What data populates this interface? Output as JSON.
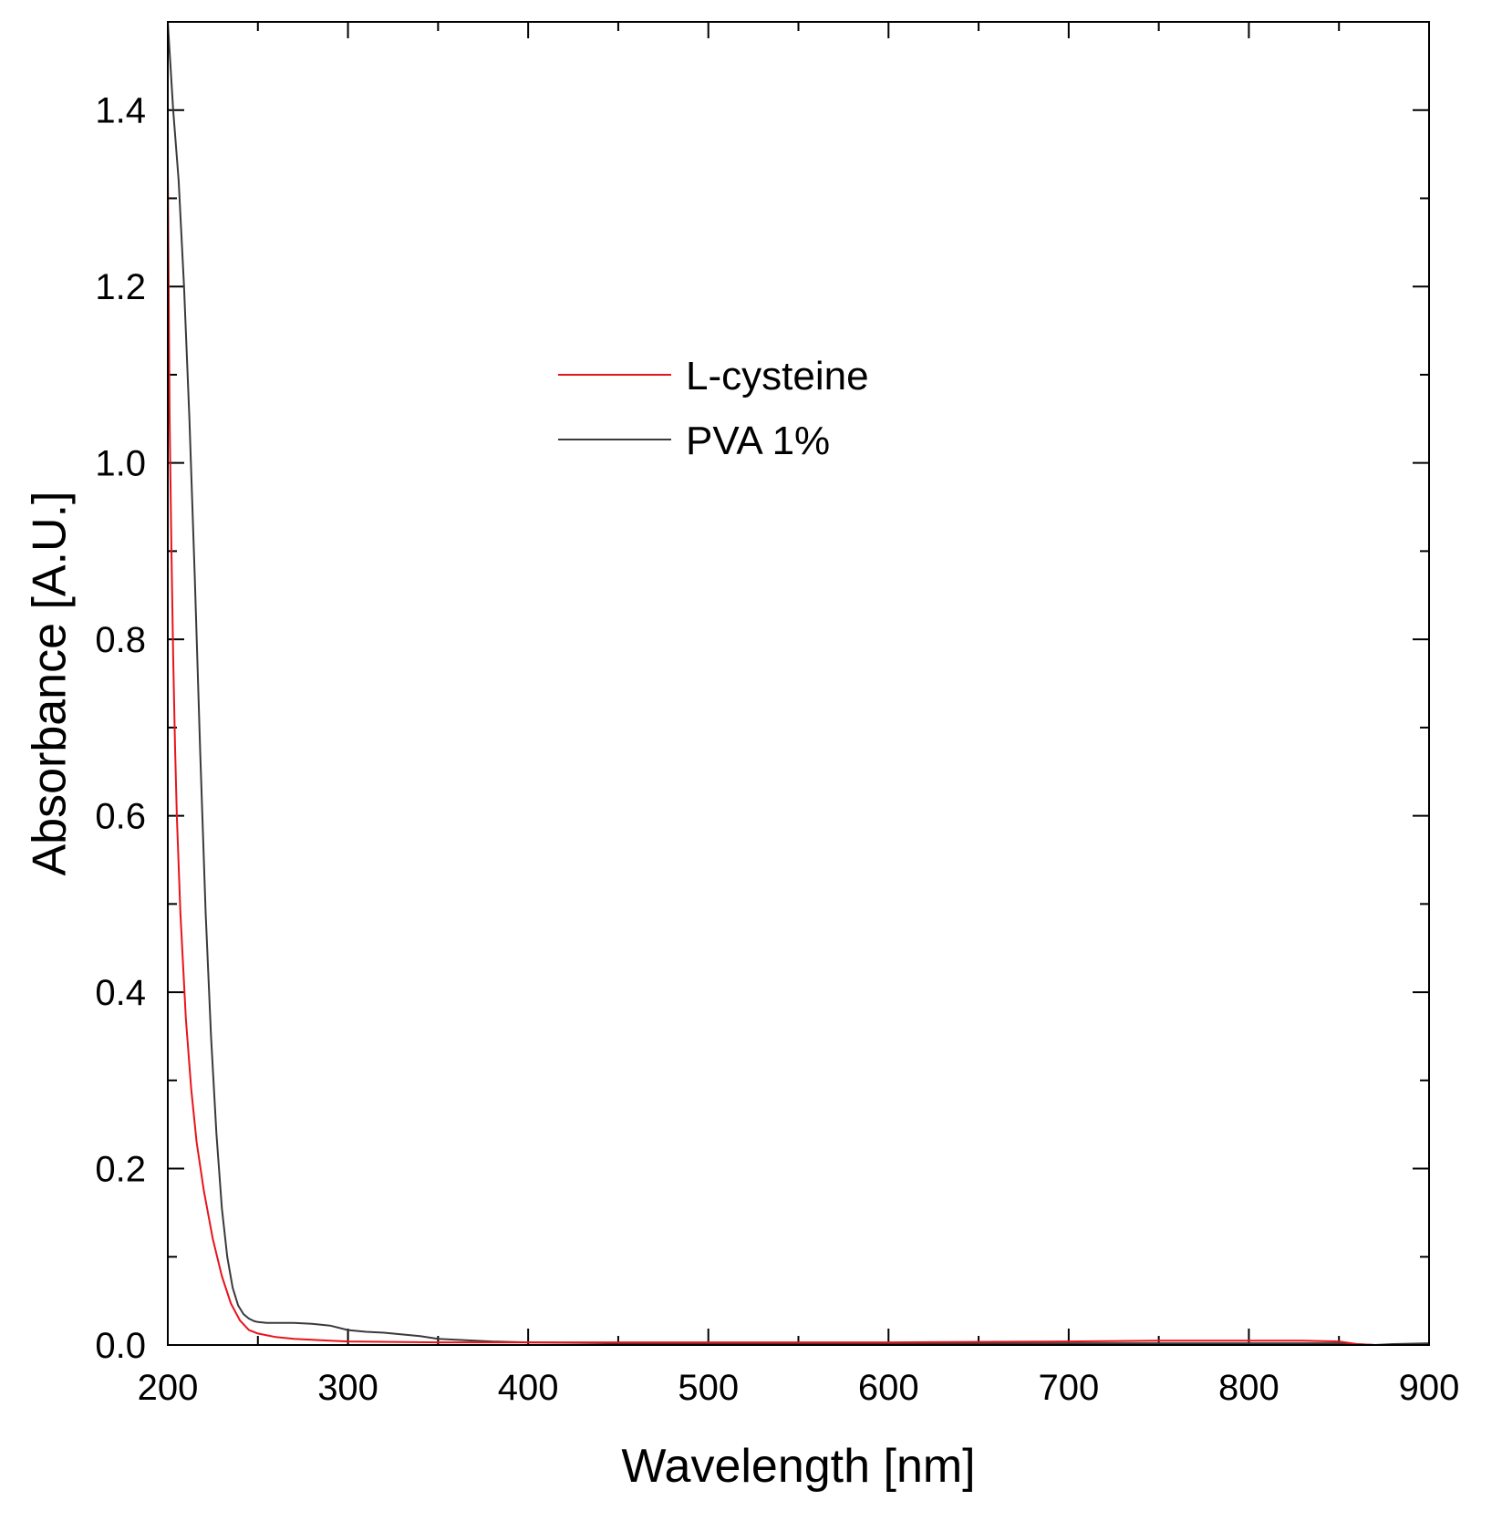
{
  "chart_data": {
    "type": "line",
    "title": "",
    "xlabel": "Wavelength [nm]",
    "ylabel": "Absorbance [A.U.]",
    "xlim": [
      200,
      900
    ],
    "ylim": [
      0,
      1.5
    ],
    "x_ticks": [
      200,
      300,
      400,
      500,
      600,
      700,
      800,
      900
    ],
    "x_tick_labels": [
      "200",
      "300",
      "400",
      "500",
      "600",
      "700",
      "800",
      "900"
    ],
    "y_ticks": [
      0,
      0.2,
      0.4,
      0.6,
      0.8,
      1.0,
      1.2,
      1.4
    ],
    "y_tick_labels": [
      "0.0",
      "0.2",
      "0.4",
      "0.6",
      "0.8",
      "1.0",
      "1.2",
      "1.4"
    ],
    "x_minor_step": 50,
    "y_minor_step": 0.1,
    "grid": false,
    "legend_position": "upper-center",
    "series": [
      {
        "name": "L-cysteine",
        "color": "#e8141b",
        "x": [
          200,
          201,
          202,
          203,
          204,
          205,
          207,
          210,
          213,
          216,
          220,
          225,
          230,
          235,
          240,
          245,
          250,
          255,
          260,
          270,
          280,
          290,
          300,
          350,
          400,
          450,
          500,
          600,
          700,
          750,
          800,
          830,
          850,
          860,
          870,
          900
        ],
        "y": [
          1.33,
          1.05,
          0.9,
          0.78,
          0.68,
          0.6,
          0.49,
          0.37,
          0.29,
          0.23,
          0.175,
          0.12,
          0.078,
          0.047,
          0.028,
          0.017,
          0.013,
          0.011,
          0.009,
          0.007,
          0.006,
          0.005,
          0.004,
          0.003,
          0.003,
          0.003,
          0.003,
          0.003,
          0.004,
          0.005,
          0.005,
          0.005,
          0.004,
          0.001,
          0.0,
          0.0
        ]
      },
      {
        "name": "PVA 1%",
        "color": "#3a3a3a",
        "x": [
          200,
          203,
          206,
          209,
          212,
          215,
          218,
          221,
          224,
          227,
          230,
          233,
          236,
          239,
          242,
          245,
          248,
          250,
          255,
          260,
          270,
          280,
          290,
          300,
          310,
          320,
          330,
          340,
          350,
          360,
          380,
          400,
          450,
          500,
          550,
          600,
          650,
          700,
          750,
          800,
          850,
          860,
          870,
          880,
          900
        ],
        "y": [
          1.5,
          1.4,
          1.32,
          1.2,
          1.05,
          0.87,
          0.67,
          0.49,
          0.35,
          0.24,
          0.155,
          0.1,
          0.065,
          0.045,
          0.035,
          0.03,
          0.027,
          0.026,
          0.025,
          0.025,
          0.025,
          0.024,
          0.022,
          0.017,
          0.015,
          0.014,
          0.012,
          0.01,
          0.007,
          0.006,
          0.004,
          0.003,
          0.002,
          0.002,
          0.002,
          0.002,
          0.002,
          0.002,
          0.002,
          0.002,
          0.002,
          0.001,
          0.0,
          0.001,
          0.002
        ]
      }
    ]
  }
}
